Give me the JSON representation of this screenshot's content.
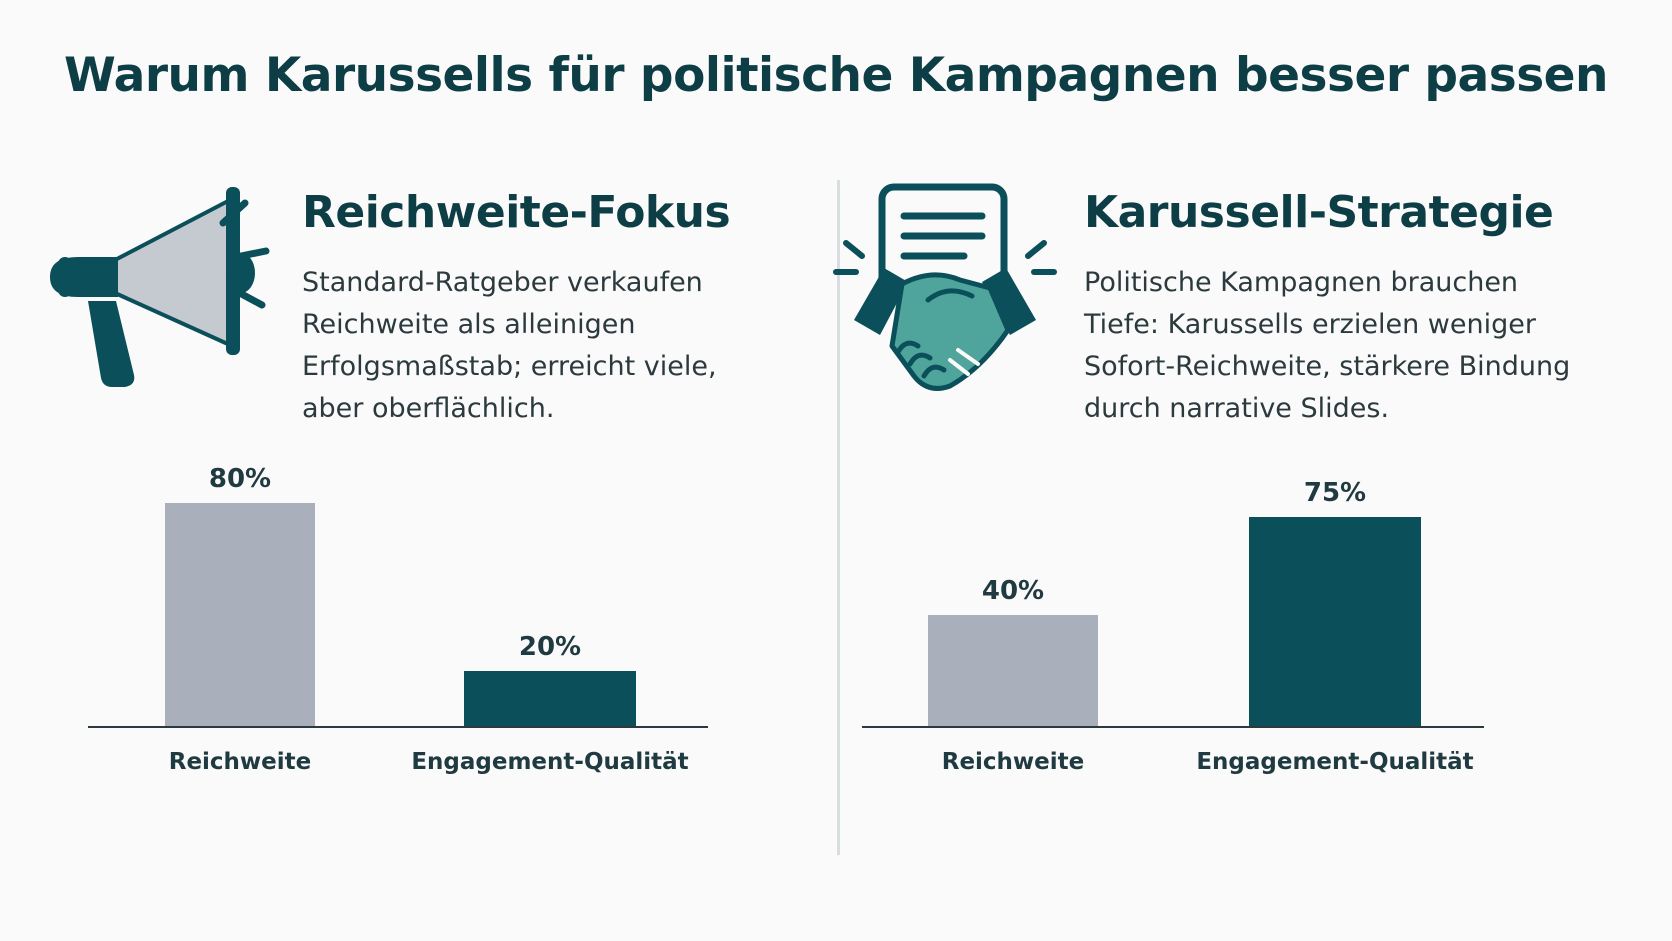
{
  "title": "Warum Karussells für politische Kampagnen besser passen",
  "colors": {
    "reach_bar": "#a9b0bb",
    "engagement_bar": "#0a4f59",
    "icon_dark": "#0a4f59",
    "icon_accent": "#4fa59c",
    "icon_light": "#c5cad0"
  },
  "left": {
    "icon": "megaphone-icon",
    "heading": "Reichweite-Fokus",
    "description_lines": [
      "Standard-Ratgeber verkaufen",
      "Reichweite als alleinigen",
      "Erfolgsmaßstab; erreicht viele,",
      "aber oberflächlich."
    ]
  },
  "right": {
    "icon": "handshake-document-icon",
    "heading": "Karussell-Strategie",
    "description_lines": [
      "Politische Kampagnen brauchen",
      "Tiefe: Karussells erzielen weniger",
      "Sofort-Reichweite, stärkere Bindung",
      "durch narrative Slides."
    ]
  },
  "chart_data": [
    {
      "type": "bar",
      "categories": [
        "Reichweite",
        "Engagement-Qualität"
      ],
      "values": [
        80,
        20
      ],
      "value_labels": [
        "80%",
        "20%"
      ],
      "ylim": [
        0,
        100
      ],
      "grid": false,
      "colors": [
        "#a9b0bb",
        "#0a4f59"
      ]
    },
    {
      "type": "bar",
      "categories": [
        "Reichweite",
        "Engagement-Qualität"
      ],
      "values": [
        40,
        75
      ],
      "value_labels": [
        "40%",
        "75%"
      ],
      "ylim": [
        0,
        100
      ],
      "grid": false,
      "colors": [
        "#a9b0bb",
        "#0a4f59"
      ]
    }
  ]
}
